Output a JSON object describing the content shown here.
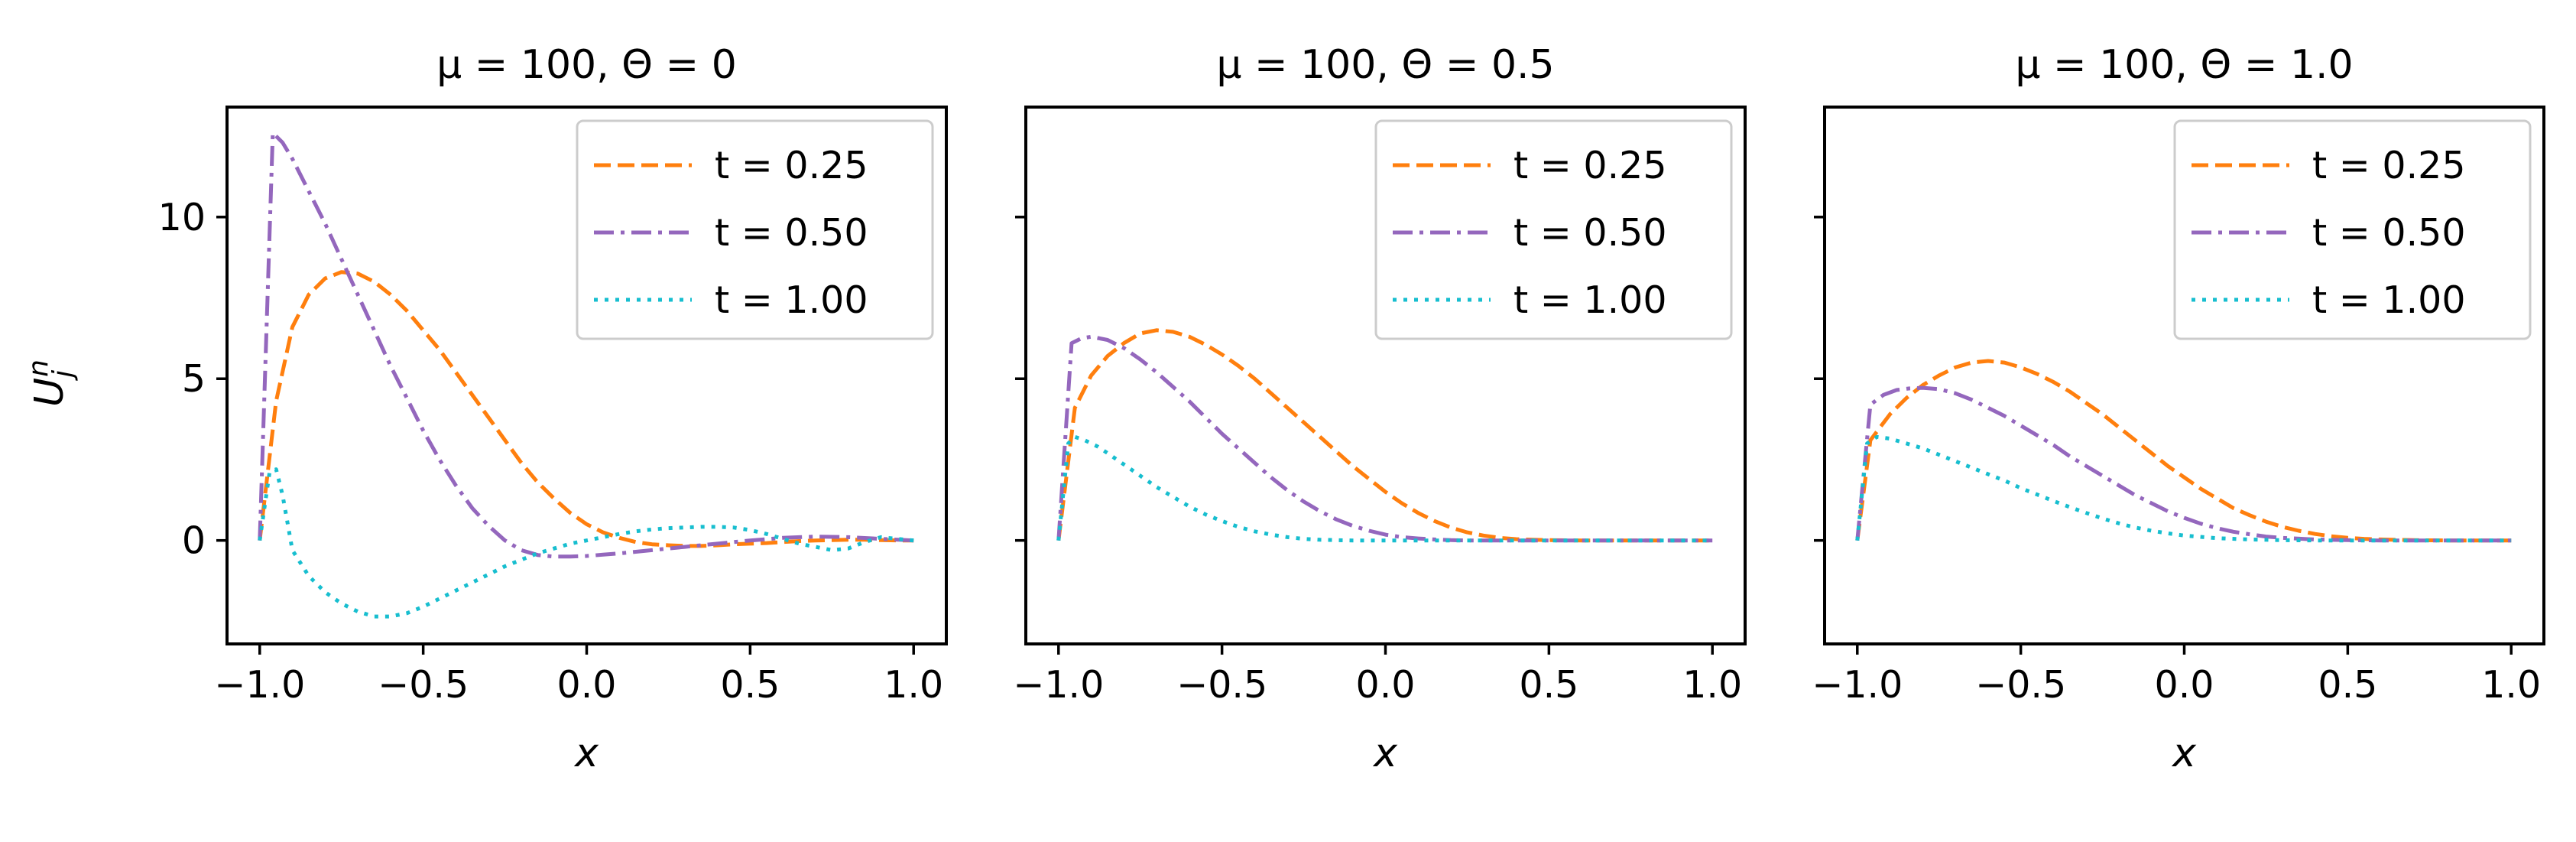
{
  "chart_data": [
    {
      "type": "line",
      "title": "μ = 100, Θ = 0",
      "xlabel": "x",
      "ylabel": "U_j^n",
      "xlim": [
        -1.1,
        1.1
      ],
      "ylim": [
        -3.2,
        13.4
      ],
      "xticks": [
        -1.0,
        -0.5,
        0.0,
        0.5,
        1.0
      ],
      "xtick_labels": [
        "−1.0",
        "−0.5",
        "0.0",
        "0.5",
        "1.0"
      ],
      "yticks": [
        0,
        5,
        10
      ],
      "ytick_labels": [
        "0",
        "5",
        "10"
      ],
      "legend_position": "top-right",
      "grid": false,
      "series": [
        {
          "name": "t = 0.25",
          "color": "#ff7f0e",
          "dash": "dashed",
          "x": [
            -1.0,
            -0.95,
            -0.9,
            -0.85,
            -0.8,
            -0.75,
            -0.7,
            -0.65,
            -0.6,
            -0.55,
            -0.5,
            -0.45,
            -0.4,
            -0.35,
            -0.3,
            -0.25,
            -0.2,
            -0.15,
            -0.1,
            -0.05,
            0.0,
            0.05,
            0.1,
            0.15,
            0.2,
            0.25,
            0.3,
            0.35,
            0.4,
            0.45,
            0.5,
            0.55,
            0.6,
            0.65,
            0.7,
            0.75,
            0.8,
            0.85,
            0.9,
            0.95,
            1.0
          ],
          "y": [
            0.0,
            4.3,
            6.6,
            7.6,
            8.1,
            8.3,
            8.25,
            8.0,
            7.6,
            7.1,
            6.5,
            5.9,
            5.2,
            4.5,
            3.8,
            3.1,
            2.4,
            1.8,
            1.3,
            0.85,
            0.5,
            0.25,
            0.08,
            -0.05,
            -0.12,
            -0.15,
            -0.17,
            -0.17,
            -0.15,
            -0.12,
            -0.1,
            -0.08,
            -0.05,
            -0.02,
            0.0,
            0.01,
            0.02,
            0.02,
            0.01,
            0.0,
            0.0
          ]
        },
        {
          "name": "t = 0.50",
          "color": "#9467bd",
          "dash": "dashdot",
          "x": [
            -1.0,
            -0.96,
            -0.93,
            -0.9,
            -0.85,
            -0.8,
            -0.75,
            -0.7,
            -0.65,
            -0.6,
            -0.55,
            -0.5,
            -0.45,
            -0.4,
            -0.35,
            -0.3,
            -0.25,
            -0.2,
            -0.15,
            -0.1,
            -0.05,
            0.0,
            0.05,
            0.1,
            0.15,
            0.2,
            0.3,
            0.4,
            0.5,
            0.6,
            0.7,
            0.8,
            0.9,
            1.0
          ],
          "y": [
            0.0,
            12.6,
            12.3,
            11.8,
            10.8,
            9.8,
            8.7,
            7.6,
            6.5,
            5.4,
            4.4,
            3.4,
            2.5,
            1.7,
            1.0,
            0.45,
            0.0,
            -0.3,
            -0.45,
            -0.5,
            -0.5,
            -0.48,
            -0.44,
            -0.4,
            -0.35,
            -0.3,
            -0.2,
            -0.1,
            0.0,
            0.08,
            0.12,
            0.1,
            0.05,
            0.0
          ]
        },
        {
          "name": "t = 1.00",
          "color": "#17becf",
          "dash": "dotted",
          "x": [
            -1.0,
            -0.97,
            -0.95,
            -0.93,
            -0.9,
            -0.85,
            -0.8,
            -0.75,
            -0.7,
            -0.65,
            -0.6,
            -0.55,
            -0.5,
            -0.45,
            -0.4,
            -0.35,
            -0.3,
            -0.25,
            -0.2,
            -0.15,
            -0.1,
            -0.05,
            0.0,
            0.05,
            0.1,
            0.15,
            0.2,
            0.25,
            0.3,
            0.35,
            0.4,
            0.45,
            0.5,
            0.55,
            0.6,
            0.65,
            0.7,
            0.75,
            0.8,
            0.85,
            0.9,
            0.95,
            1.0
          ],
          "y": [
            0.0,
            2.1,
            2.2,
            1.4,
            -0.3,
            -1.1,
            -1.6,
            -1.95,
            -2.2,
            -2.35,
            -2.35,
            -2.25,
            -2.05,
            -1.8,
            -1.55,
            -1.3,
            -1.05,
            -0.8,
            -0.6,
            -0.4,
            -0.25,
            -0.1,
            0.0,
            0.1,
            0.2,
            0.28,
            0.34,
            0.38,
            0.4,
            0.42,
            0.42,
            0.4,
            0.32,
            0.2,
            0.05,
            -0.1,
            -0.2,
            -0.3,
            -0.25,
            -0.05,
            0.1,
            0.05,
            0.0
          ]
        }
      ]
    },
    {
      "type": "line",
      "title": "μ = 100, Θ = 0.5",
      "xlabel": "x",
      "ylabel": "",
      "xlim": [
        -1.1,
        1.1
      ],
      "ylim": [
        -3.2,
        13.4
      ],
      "xticks": [
        -1.0,
        -0.5,
        0.0,
        0.5,
        1.0
      ],
      "xtick_labels": [
        "−1.0",
        "−0.5",
        "0.0",
        "0.5",
        "1.0"
      ],
      "yticks": [
        0,
        5,
        10
      ],
      "ytick_labels": [
        "",
        "",
        ""
      ],
      "legend_position": "top-right",
      "grid": false,
      "series": [
        {
          "name": "t = 0.25",
          "color": "#ff7f0e",
          "dash": "dashed",
          "x": [
            -1.0,
            -0.95,
            -0.9,
            -0.85,
            -0.8,
            -0.75,
            -0.7,
            -0.65,
            -0.6,
            -0.55,
            -0.5,
            -0.45,
            -0.4,
            -0.35,
            -0.3,
            -0.25,
            -0.2,
            -0.15,
            -0.1,
            -0.05,
            0.0,
            0.05,
            0.1,
            0.15,
            0.2,
            0.25,
            0.3,
            0.35,
            0.4,
            0.45,
            0.5,
            0.6,
            0.7,
            0.8,
            0.9,
            1.0
          ],
          "y": [
            0.0,
            4.1,
            5.1,
            5.7,
            6.1,
            6.4,
            6.5,
            6.45,
            6.3,
            6.05,
            5.75,
            5.4,
            5.0,
            4.55,
            4.1,
            3.65,
            3.2,
            2.75,
            2.3,
            1.9,
            1.5,
            1.15,
            0.85,
            0.6,
            0.4,
            0.25,
            0.15,
            0.08,
            0.04,
            0.02,
            0.01,
            0.0,
            0.0,
            0.0,
            0.0,
            0.0
          ]
        },
        {
          "name": "t = 0.50",
          "color": "#9467bd",
          "dash": "dashdot",
          "x": [
            -1.0,
            -0.96,
            -0.93,
            -0.9,
            -0.85,
            -0.8,
            -0.75,
            -0.7,
            -0.65,
            -0.6,
            -0.55,
            -0.5,
            -0.45,
            -0.4,
            -0.35,
            -0.3,
            -0.25,
            -0.2,
            -0.15,
            -0.1,
            -0.05,
            0.0,
            0.05,
            0.1,
            0.15,
            0.2,
            0.25,
            0.3,
            0.4,
            0.5,
            0.6,
            0.8,
            1.0
          ],
          "y": [
            0.0,
            6.1,
            6.25,
            6.3,
            6.2,
            5.95,
            5.6,
            5.2,
            4.75,
            4.3,
            3.8,
            3.3,
            2.85,
            2.4,
            1.95,
            1.55,
            1.2,
            0.9,
            0.65,
            0.45,
            0.3,
            0.18,
            0.1,
            0.06,
            0.03,
            0.01,
            0.0,
            0.0,
            0.0,
            0.0,
            0.0,
            0.0,
            0.0
          ]
        },
        {
          "name": "t = 1.00",
          "color": "#17becf",
          "dash": "dotted",
          "x": [
            -1.0,
            -0.97,
            -0.95,
            -0.92,
            -0.88,
            -0.85,
            -0.8,
            -0.75,
            -0.7,
            -0.65,
            -0.6,
            -0.55,
            -0.5,
            -0.45,
            -0.4,
            -0.35,
            -0.3,
            -0.25,
            -0.2,
            -0.15,
            -0.1,
            -0.05,
            0.0,
            0.1,
            0.2,
            0.4,
            0.6,
            0.8,
            1.0
          ],
          "y": [
            0.0,
            3.0,
            3.2,
            3.1,
            2.9,
            2.7,
            2.35,
            2.0,
            1.65,
            1.35,
            1.05,
            0.8,
            0.6,
            0.42,
            0.28,
            0.18,
            0.1,
            0.05,
            0.02,
            0.01,
            0.0,
            0.0,
            0.0,
            0.0,
            0.0,
            0.0,
            0.0,
            0.0,
            0.0
          ]
        }
      ]
    },
    {
      "type": "line",
      "title": "μ = 100, Θ = 1.0",
      "xlabel": "x",
      "ylabel": "",
      "xlim": [
        -1.1,
        1.1
      ],
      "ylim": [
        -3.2,
        13.4
      ],
      "xticks": [
        -1.0,
        -0.5,
        0.0,
        0.5,
        1.0
      ],
      "xtick_labels": [
        "−1.0",
        "−0.5",
        "0.0",
        "0.5",
        "1.0"
      ],
      "yticks": [
        0,
        5,
        10
      ],
      "ytick_labels": [
        "",
        "",
        ""
      ],
      "legend_position": "top-right",
      "grid": false,
      "series": [
        {
          "name": "t = 0.25",
          "color": "#ff7f0e",
          "dash": "dashed",
          "x": [
            -1.0,
            -0.96,
            -0.9,
            -0.85,
            -0.8,
            -0.75,
            -0.7,
            -0.65,
            -0.6,
            -0.55,
            -0.5,
            -0.45,
            -0.4,
            -0.35,
            -0.3,
            -0.25,
            -0.2,
            -0.15,
            -0.1,
            -0.05,
            0.0,
            0.05,
            0.1,
            0.15,
            0.2,
            0.25,
            0.3,
            0.35,
            0.4,
            0.45,
            0.5,
            0.55,
            0.6,
            0.7,
            0.8,
            0.9,
            1.0
          ],
          "y": [
            0.0,
            3.1,
            3.9,
            4.4,
            4.8,
            5.1,
            5.35,
            5.5,
            5.55,
            5.5,
            5.35,
            5.15,
            4.9,
            4.6,
            4.25,
            3.9,
            3.5,
            3.1,
            2.7,
            2.3,
            1.95,
            1.6,
            1.3,
            1.0,
            0.78,
            0.58,
            0.42,
            0.3,
            0.2,
            0.13,
            0.08,
            0.05,
            0.03,
            0.01,
            0.0,
            0.0,
            0.0
          ]
        },
        {
          "name": "t = 0.50",
          "color": "#9467bd",
          "dash": "dashdot",
          "x": [
            -1.0,
            -0.96,
            -0.92,
            -0.88,
            -0.84,
            -0.8,
            -0.75,
            -0.7,
            -0.65,
            -0.6,
            -0.55,
            -0.5,
            -0.45,
            -0.4,
            -0.35,
            -0.3,
            -0.25,
            -0.2,
            -0.15,
            -0.1,
            -0.05,
            0.0,
            0.05,
            0.1,
            0.15,
            0.2,
            0.25,
            0.3,
            0.4,
            0.5,
            0.6,
            0.8,
            1.0
          ],
          "y": [
            0.0,
            4.2,
            4.5,
            4.65,
            4.7,
            4.72,
            4.68,
            4.55,
            4.35,
            4.1,
            3.85,
            3.55,
            3.25,
            2.95,
            2.6,
            2.3,
            2.0,
            1.7,
            1.4,
            1.15,
            0.9,
            0.7,
            0.52,
            0.38,
            0.27,
            0.19,
            0.12,
            0.08,
            0.03,
            0.01,
            0.0,
            0.0,
            0.0
          ]
        },
        {
          "name": "t = 1.00",
          "color": "#17becf",
          "dash": "dotted",
          "x": [
            -1.0,
            -0.97,
            -0.94,
            -0.9,
            -0.85,
            -0.8,
            -0.75,
            -0.7,
            -0.65,
            -0.6,
            -0.55,
            -0.5,
            -0.45,
            -0.4,
            -0.35,
            -0.3,
            -0.25,
            -0.2,
            -0.15,
            -0.1,
            -0.05,
            0.0,
            0.1,
            0.2,
            0.3,
            0.4,
            0.5,
            0.6,
            0.8,
            1.0
          ],
          "y": [
            0.0,
            3.0,
            3.2,
            3.15,
            3.0,
            2.85,
            2.65,
            2.45,
            2.25,
            2.05,
            1.85,
            1.62,
            1.42,
            1.22,
            1.03,
            0.85,
            0.68,
            0.53,
            0.4,
            0.3,
            0.22,
            0.15,
            0.07,
            0.03,
            0.01,
            0.0,
            0.0,
            0.0,
            0.0,
            0.0
          ]
        }
      ]
    }
  ]
}
